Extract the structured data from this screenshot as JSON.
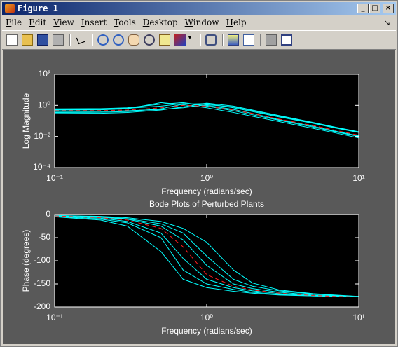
{
  "window": {
    "title": "Figure 1",
    "menus": [
      "File",
      "Edit",
      "View",
      "Insert",
      "Tools",
      "Desktop",
      "Window",
      "Help"
    ]
  },
  "chart_data": [
    {
      "type": "line",
      "ylabel": "Log Magnitude",
      "xlabel": "Frequency (radians/sec)",
      "xscale": "log",
      "yscale": "log",
      "xlim": [
        0.1,
        10
      ],
      "xticks": [
        {
          "value": 0.1,
          "label": "10⁻¹"
        },
        {
          "value": 1,
          "label": "10⁰"
        },
        {
          "value": 10,
          "label": "10¹"
        }
      ],
      "ylim": [
        0.0001,
        100
      ],
      "yticks": [
        {
          "value": 0.0001,
          "label": "10⁻⁴"
        },
        {
          "value": 0.01,
          "label": "10⁻²"
        },
        {
          "value": 1,
          "label": "10⁰"
        },
        {
          "value": 100,
          "label": "10²"
        }
      ],
      "x": [
        0.1,
        0.2,
        0.3,
        0.5,
        0.7,
        1,
        1.5,
        2,
        3,
        5,
        7,
        10
      ],
      "series": [
        {
          "color": "#00ffff",
          "values": [
            0.6,
            0.62,
            0.7,
            1.2,
            1.5,
            0.9,
            0.45,
            0.25,
            0.11,
            0.04,
            0.02,
            0.01
          ]
        },
        {
          "color": "#00ffff",
          "values": [
            0.35,
            0.36,
            0.4,
            0.6,
            1.2,
            1.3,
            0.7,
            0.4,
            0.18,
            0.07,
            0.035,
            0.018
          ]
        },
        {
          "color": "#00ffff",
          "values": [
            0.5,
            0.52,
            0.6,
            1.5,
            1.1,
            0.7,
            0.35,
            0.2,
            0.09,
            0.033,
            0.017,
            0.008
          ]
        },
        {
          "color": "#00ffff",
          "values": [
            0.3,
            0.31,
            0.35,
            0.5,
            0.8,
            1.4,
            0.9,
            0.5,
            0.22,
            0.08,
            0.04,
            0.02
          ]
        },
        {
          "color": "#00ffff",
          "values": [
            0.55,
            0.56,
            0.65,
            0.9,
            1.3,
            1.0,
            0.55,
            0.3,
            0.12,
            0.045,
            0.022,
            0.011
          ]
        },
        {
          "color": "#00ffff",
          "values": [
            0.4,
            0.41,
            0.45,
            0.55,
            0.7,
            1.1,
            0.8,
            0.45,
            0.2,
            0.075,
            0.038,
            0.019
          ]
        },
        {
          "color": "#ff2020",
          "dashed": true,
          "values": [
            0.45,
            0.46,
            0.5,
            0.7,
            1.0,
            0.9,
            0.5,
            0.3,
            0.13,
            0.05,
            0.025,
            0.012
          ]
        }
      ]
    },
    {
      "type": "line",
      "title": "Bode Plots of Perturbed Plants",
      "ylabel": "Phase (degrees)",
      "xlabel": "Frequency (radians/sec)",
      "xscale": "log",
      "xlim": [
        0.1,
        10
      ],
      "xticks": [
        {
          "value": 0.1,
          "label": "10⁻¹"
        },
        {
          "value": 1,
          "label": "10⁰"
        },
        {
          "value": 10,
          "label": "10¹"
        }
      ],
      "ylim": [
        -200,
        0
      ],
      "yticks": [
        -200,
        -150,
        -100,
        -50,
        0
      ],
      "x": [
        0.1,
        0.2,
        0.3,
        0.5,
        0.7,
        1,
        1.5,
        2,
        3,
        5,
        7,
        10
      ],
      "series": [
        {
          "color": "#00ffff",
          "values": [
            -4,
            -10,
            -18,
            -50,
            -120,
            -150,
            -162,
            -168,
            -173,
            -176,
            -177,
            -178
          ]
        },
        {
          "color": "#00ffff",
          "values": [
            -2,
            -5,
            -9,
            -20,
            -40,
            -90,
            -140,
            -155,
            -165,
            -172,
            -175,
            -177
          ]
        },
        {
          "color": "#00ffff",
          "values": [
            -5,
            -12,
            -25,
            -80,
            -140,
            -158,
            -166,
            -170,
            -174,
            -176,
            -177,
            -178
          ]
        },
        {
          "color": "#00ffff",
          "values": [
            -2,
            -4,
            -7,
            -15,
            -30,
            -60,
            -120,
            -148,
            -163,
            -171,
            -174,
            -177
          ]
        },
        {
          "color": "#00ffff",
          "values": [
            -3,
            -8,
            -15,
            -40,
            -95,
            -140,
            -158,
            -165,
            -171,
            -175,
            -177,
            -178
          ]
        },
        {
          "color": "#00ffff",
          "values": [
            -2,
            -6,
            -10,
            -25,
            -55,
            -110,
            -150,
            -160,
            -168,
            -174,
            -176,
            -177
          ]
        },
        {
          "color": "#ff2020",
          "dashed": true,
          "values": [
            -3,
            -7,
            -12,
            -30,
            -70,
            -130,
            -155,
            -163,
            -170,
            -175,
            -177,
            -178
          ]
        }
      ]
    }
  ]
}
